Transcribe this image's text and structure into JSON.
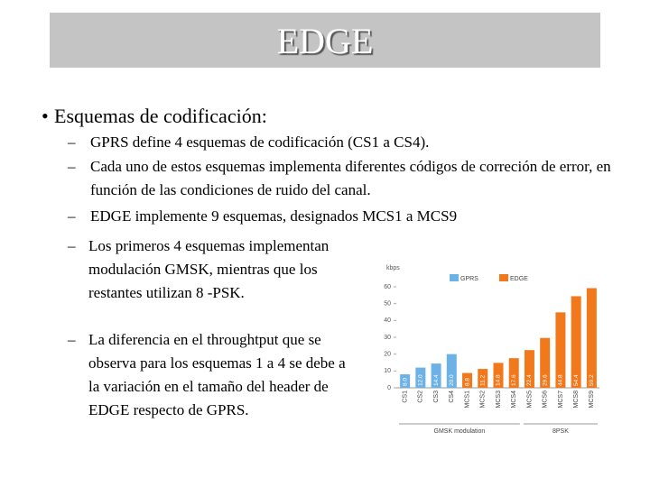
{
  "title": "EDGE",
  "bullets": [
    {
      "text": "Esquemas de codificación:",
      "items": [
        "GPRS define 4 esquemas de codificación (CS1 a CS4).",
        "Cada uno de estos esquemas implementa diferentes códigos de correción de error, en función de las condiciones de ruido del canal.",
        "EDGE implemente 9 esquemas, designados MCS1 a MCS9"
      ]
    }
  ],
  "notes": [
    "Los primeros 4 esquemas implementan modulación GMSK, mientras que los restantes utilizan 8 -PSK.",
    "La diferencia en el throughtput que se observa para los esquemas 1 a 4 se debe a la variación en el tamaño del header de EDGE respecto de GPRS."
  ],
  "chart_data": {
    "type": "bar",
    "y_label": "kbps",
    "categories": [
      "CS1",
      "CS2",
      "CS3",
      "CS4",
      "MCS1",
      "MCS2",
      "MCS3",
      "MCS4",
      "MCS5",
      "MCS6",
      "MCS7",
      "MCS8",
      "MCS9"
    ],
    "series": [
      {
        "name": "GPRS",
        "color": "#6cb2e6",
        "values": [
          8,
          12,
          14.4,
          20,
          null,
          null,
          null,
          null,
          null,
          null,
          null,
          null,
          null
        ],
        "value_labels": [
          "8.0",
          "12.0",
          "14.4",
          "20.0",
          null,
          null,
          null,
          null,
          null,
          null,
          null,
          null,
          null
        ]
      },
      {
        "name": "EDGE",
        "color": "#f2781c",
        "values": [
          null,
          null,
          null,
          null,
          8.8,
          11.2,
          14.8,
          17.6,
          22.4,
          29.6,
          44.8,
          54.4,
          59.2
        ],
        "value_labels": [
          null,
          null,
          null,
          null,
          "8.8",
          "11.2",
          "14.8",
          "17.6",
          "22.4",
          "29.6",
          "44.8",
          "54.4",
          "59.2"
        ]
      }
    ],
    "ylim": [
      0,
      60
    ],
    "yticks": [
      0,
      10,
      20,
      30,
      40,
      50,
      60
    ],
    "groups": [
      "GMSK modulation",
      "8PSK"
    ]
  }
}
